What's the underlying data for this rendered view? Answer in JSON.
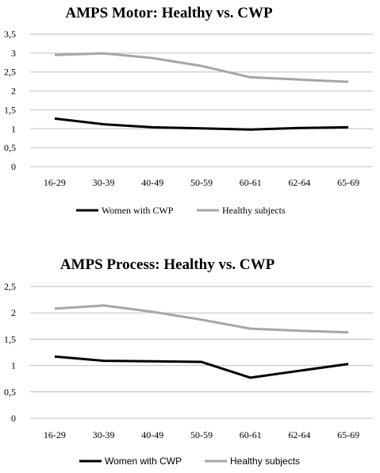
{
  "chart_data": [
    {
      "type": "line",
      "title": "AMPS Motor: Healthy vs. CWP",
      "categories": [
        "16-29",
        "30-39",
        "40-49",
        "50-59",
        "60-61",
        "62-64",
        "65-69"
      ],
      "y_ticks": [
        "0",
        "0,5",
        "1",
        "1,5",
        "2",
        "2,5",
        "3",
        "3,5"
      ],
      "ylim": [
        0,
        3.5
      ],
      "grid": true,
      "legend_position": "bottom",
      "series": [
        {
          "name": "Women with CWP",
          "color": "#000000",
          "values": [
            1.27,
            1.12,
            1.04,
            1.01,
            0.98,
            1.02,
            1.04
          ]
        },
        {
          "name": "Healthy subjects",
          "color": "#a6a6a6",
          "values": [
            2.95,
            2.99,
            2.87,
            2.66,
            2.36,
            2.3,
            2.24
          ]
        }
      ]
    },
    {
      "type": "line",
      "title": "AMPS Process: Healthy vs. CWP",
      "categories": [
        "16-29",
        "30-39",
        "40-49",
        "50-59",
        "60-61",
        "62-64",
        "65-69"
      ],
      "y_ticks": [
        "0",
        "0,5",
        "1",
        "1,5",
        "2",
        "2,5"
      ],
      "ylim": [
        0,
        2.5
      ],
      "grid": true,
      "legend_position": "bottom",
      "series": [
        {
          "name": "Women with CWP",
          "color": "#000000",
          "values": [
            1.17,
            1.09,
            1.08,
            1.07,
            0.77,
            0.9,
            1.03
          ]
        },
        {
          "name": "Healthy subjects",
          "color": "#a6a6a6",
          "values": [
            2.08,
            2.14,
            2.02,
            1.87,
            1.7,
            1.66,
            1.63
          ]
        }
      ]
    }
  ]
}
